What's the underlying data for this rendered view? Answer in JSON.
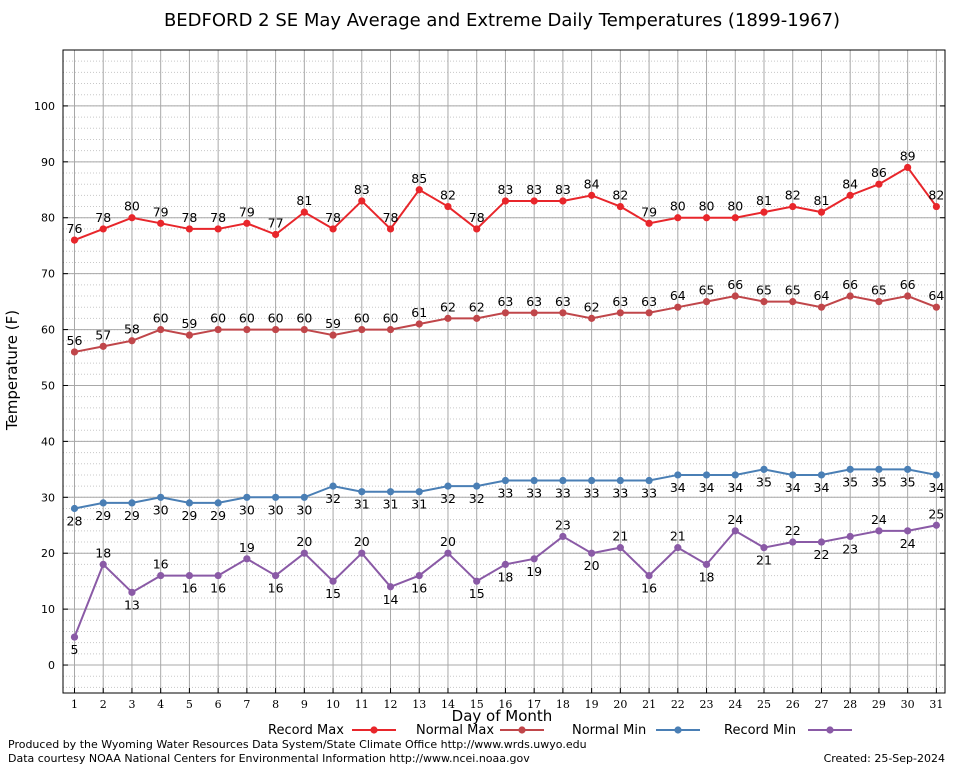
{
  "chart_data": {
    "type": "line",
    "title": "BEDFORD 2 SE May Average and Extreme Daily Temperatures (1899-1967)",
    "xlabel": "Day of Month",
    "ylabel": "Temperature (F)",
    "x": [
      1,
      2,
      3,
      4,
      5,
      6,
      7,
      8,
      9,
      10,
      11,
      12,
      13,
      14,
      15,
      16,
      17,
      18,
      19,
      20,
      21,
      22,
      23,
      24,
      25,
      26,
      27,
      28,
      29,
      30,
      31
    ],
    "xlim": [
      0.6,
      31.3
    ],
    "ylim": [
      -5,
      110
    ],
    "yticks": [
      0,
      10,
      20,
      30,
      40,
      50,
      60,
      70,
      80,
      90,
      100
    ],
    "grid": true,
    "legend_position": "bottom",
    "series": [
      {
        "name": "Record Max",
        "color": "#e8262b",
        "values": [
          76,
          78,
          80,
          79,
          78,
          78,
          79,
          77,
          81,
          78,
          83,
          78,
          85,
          82,
          78,
          83,
          83,
          83,
          84,
          82,
          79,
          80,
          80,
          80,
          81,
          82,
          81,
          84,
          86,
          89,
          82
        ]
      },
      {
        "name": "Normal Max",
        "color": "#c0464a",
        "values": [
          56,
          57,
          58,
          60,
          59,
          60,
          60,
          60,
          60,
          59,
          60,
          60,
          61,
          62,
          62,
          63,
          63,
          63,
          62,
          63,
          63,
          64,
          65,
          66,
          65,
          65,
          64,
          66,
          65,
          66,
          64
        ]
      },
      {
        "name": "Normal Min",
        "color": "#4a7fb5",
        "values": [
          28,
          29,
          29,
          30,
          29,
          29,
          30,
          30,
          30,
          32,
          31,
          31,
          31,
          32,
          32,
          33,
          33,
          33,
          33,
          33,
          33,
          34,
          34,
          34,
          35,
          34,
          34,
          35,
          35,
          35,
          34
        ]
      },
      {
        "name": "Record Min",
        "color": "#8a5aa6",
        "values": [
          5,
          18,
          13,
          16,
          16,
          16,
          19,
          16,
          20,
          15,
          20,
          14,
          16,
          20,
          15,
          18,
          19,
          23,
          20,
          21,
          16,
          21,
          18,
          24,
          21,
          22,
          22,
          23,
          24,
          24,
          25
        ]
      }
    ]
  },
  "footer": {
    "produced_by": "Produced by the Wyoming Water Resources Data System/State Climate Office http://www.wrds.uwyo.edu",
    "courtesy": "Data courtesy NOAA National Centers for Environmental Information http://www.ncei.noaa.gov",
    "created": "Created:  25-Sep-2024"
  }
}
